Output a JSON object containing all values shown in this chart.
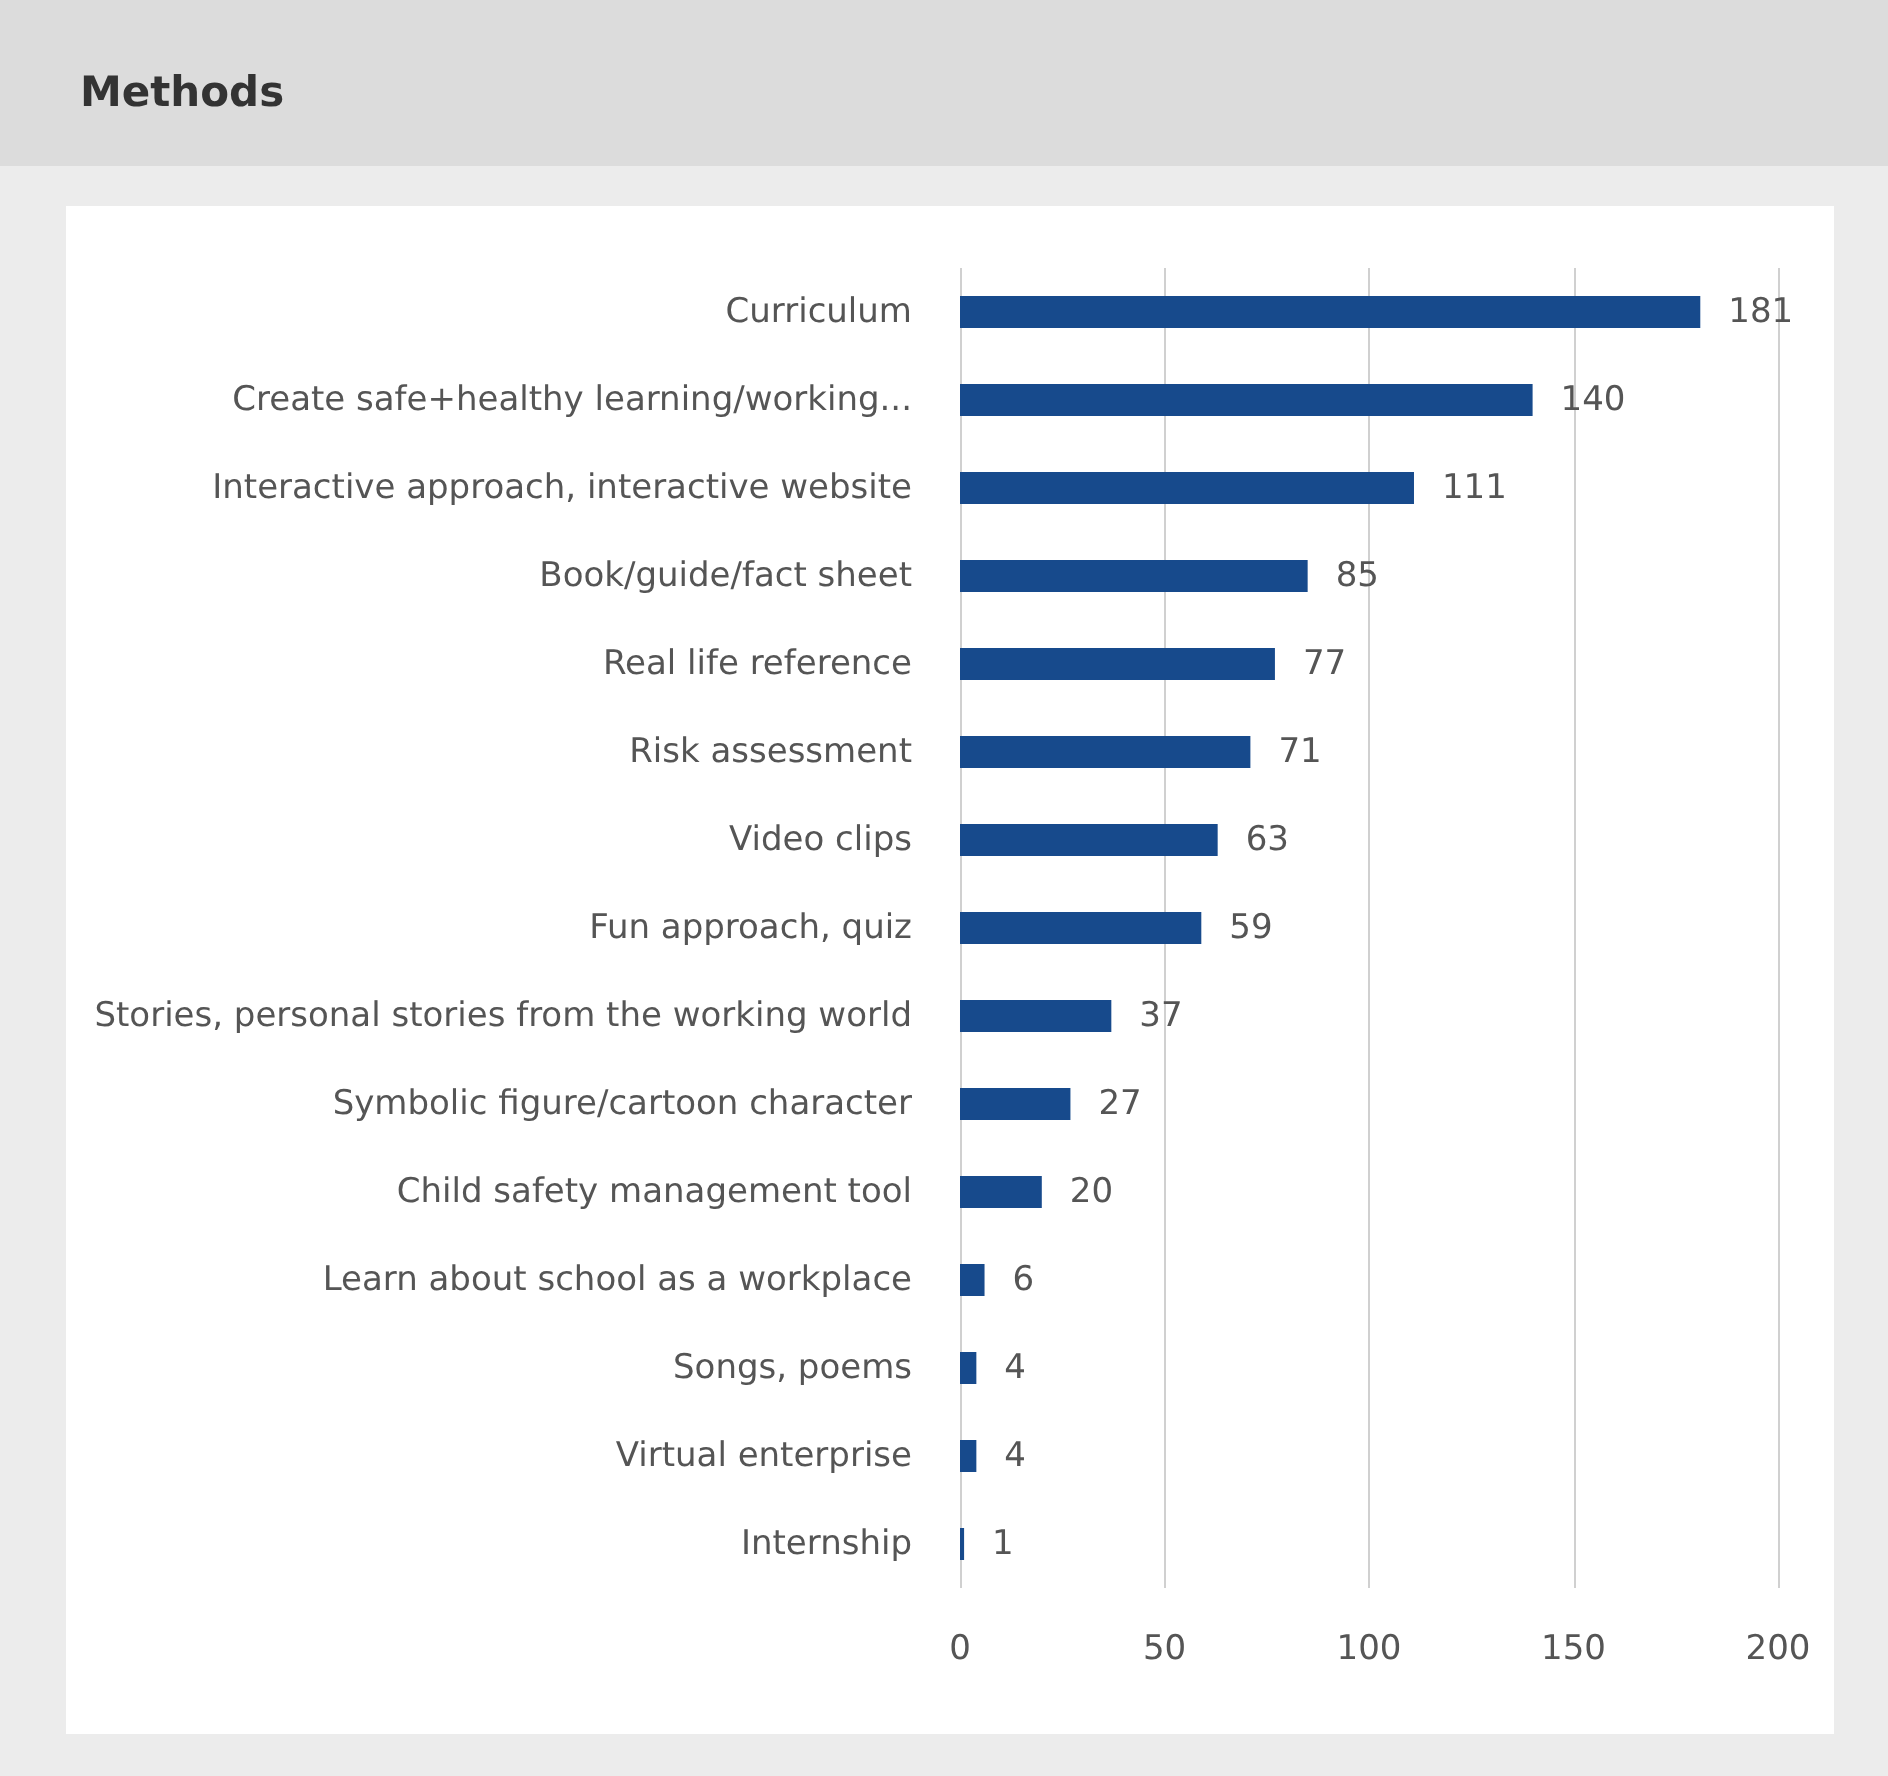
{
  "chart_data": {
    "type": "bar",
    "title": "Methods",
    "orientation": "horizontal",
    "categories": [
      "Curriculum",
      "Create safe+healthy learning/working...",
      "Interactive approach, interactive website",
      "Book/guide/fact sheet",
      "Real life reference",
      "Risk assessment",
      "Video clips",
      "Fun approach, quiz",
      "Stories, personal stories from the working world",
      "Symbolic figure/cartoon character",
      "Child safety management tool",
      "Learn about school as a workplace",
      "Songs, poems",
      "Virtual enterprise",
      "Internship"
    ],
    "values": [
      181,
      140,
      111,
      85,
      77,
      71,
      63,
      59,
      37,
      27,
      20,
      6,
      4,
      4,
      1
    ],
    "color": "#174a8c",
    "xlim": [
      0,
      200
    ],
    "xticks": [
      0,
      50,
      100,
      150,
      200
    ],
    "grid": "x",
    "data_labels": true
  }
}
